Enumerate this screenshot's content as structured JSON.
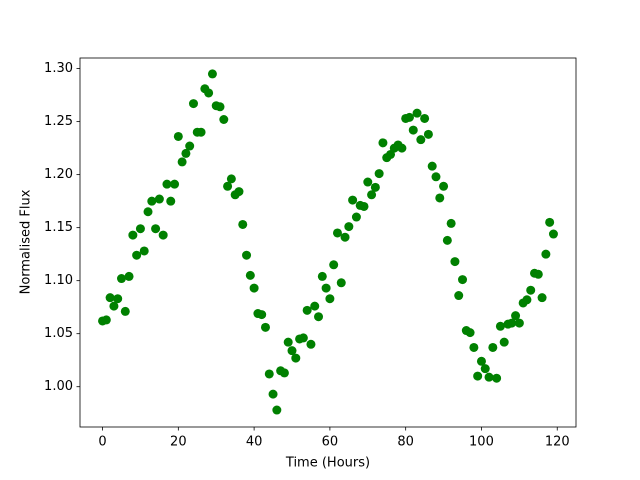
{
  "chart_data": {
    "type": "scatter",
    "xlabel": "Time (Hours)",
    "ylabel": "Normalised Flux",
    "color": "#008000",
    "x": [
      0,
      1,
      2,
      3,
      4,
      5,
      6,
      7,
      8,
      9,
      10,
      11,
      12,
      13,
      14,
      15,
      16,
      17,
      18,
      19,
      20,
      21,
      22,
      23,
      24,
      25,
      26,
      27,
      28,
      29,
      30,
      31,
      32,
      33,
      34,
      35,
      36,
      37,
      38,
      39,
      40,
      41,
      42,
      43,
      44,
      45,
      46,
      47,
      48,
      49,
      50,
      51,
      52,
      53,
      54,
      55,
      56,
      57,
      58,
      59,
      60,
      61,
      62,
      63,
      64,
      65,
      66,
      67,
      68,
      69,
      70,
      71,
      72,
      73,
      74,
      75,
      76,
      77,
      78,
      79,
      80,
      81,
      82,
      83,
      84,
      85,
      86,
      87,
      88,
      89,
      90,
      91,
      92,
      93,
      94,
      95,
      96,
      97,
      98,
      99,
      100,
      101,
      102,
      103,
      104,
      105,
      106,
      107,
      108,
      109,
      110,
      111,
      112,
      113,
      114,
      115,
      116,
      117,
      118,
      119
    ],
    "values": [
      1.062,
      1.063,
      1.084,
      1.076,
      1.083,
      1.102,
      1.071,
      1.104,
      1.143,
      1.124,
      1.149,
      1.128,
      1.165,
      1.175,
      1.149,
      1.177,
      1.143,
      1.191,
      1.175,
      1.191,
      1.236,
      1.212,
      1.22,
      1.227,
      1.267,
      1.24,
      1.24,
      1.281,
      1.277,
      1.295,
      1.265,
      1.264,
      1.252,
      1.189,
      1.196,
      1.181,
      1.184,
      1.153,
      1.124,
      1.105,
      1.093,
      1.069,
      1.068,
      1.056,
      1.012,
      0.993,
      0.978,
      1.015,
      1.013,
      1.042,
      1.034,
      1.027,
      1.045,
      1.046,
      1.072,
      1.04,
      1.076,
      1.066,
      1.104,
      1.093,
      1.083,
      1.115,
      1.145,
      1.098,
      1.141,
      1.151,
      1.176,
      1.16,
      1.171,
      1.17,
      1.193,
      1.181,
      1.188,
      1.201,
      1.23,
      1.216,
      1.219,
      1.225,
      1.228,
      1.225,
      1.253,
      1.254,
      1.242,
      1.258,
      1.233,
      1.253,
      1.238,
      1.208,
      1.198,
      1.178,
      1.189,
      1.138,
      1.154,
      1.118,
      1.086,
      1.101,
      1.053,
      1.051,
      1.037,
      1.01,
      1.024,
      1.017,
      1.009,
      1.037,
      1.008,
      1.057,
      1.042,
      1.059,
      1.06,
      1.067,
      1.06,
      1.079,
      1.082,
      1.091,
      1.107,
      1.106,
      1.084,
      1.125,
      1.155,
      1.144
    ],
    "xlim": [
      -5.95,
      124.95
    ],
    "ylim": [
      0.962,
      1.31
    ],
    "xticks": [
      0,
      20,
      40,
      60,
      80,
      100,
      120
    ],
    "yticks": [
      {
        "value": 1,
        "label": "1.00"
      },
      1.05,
      {
        "value": 1.1,
        "label": "1.10"
      },
      1.15,
      {
        "value": 1.2,
        "label": "1.20"
      },
      1.25,
      {
        "value": 1.3,
        "label": "1.30"
      }
    ]
  }
}
